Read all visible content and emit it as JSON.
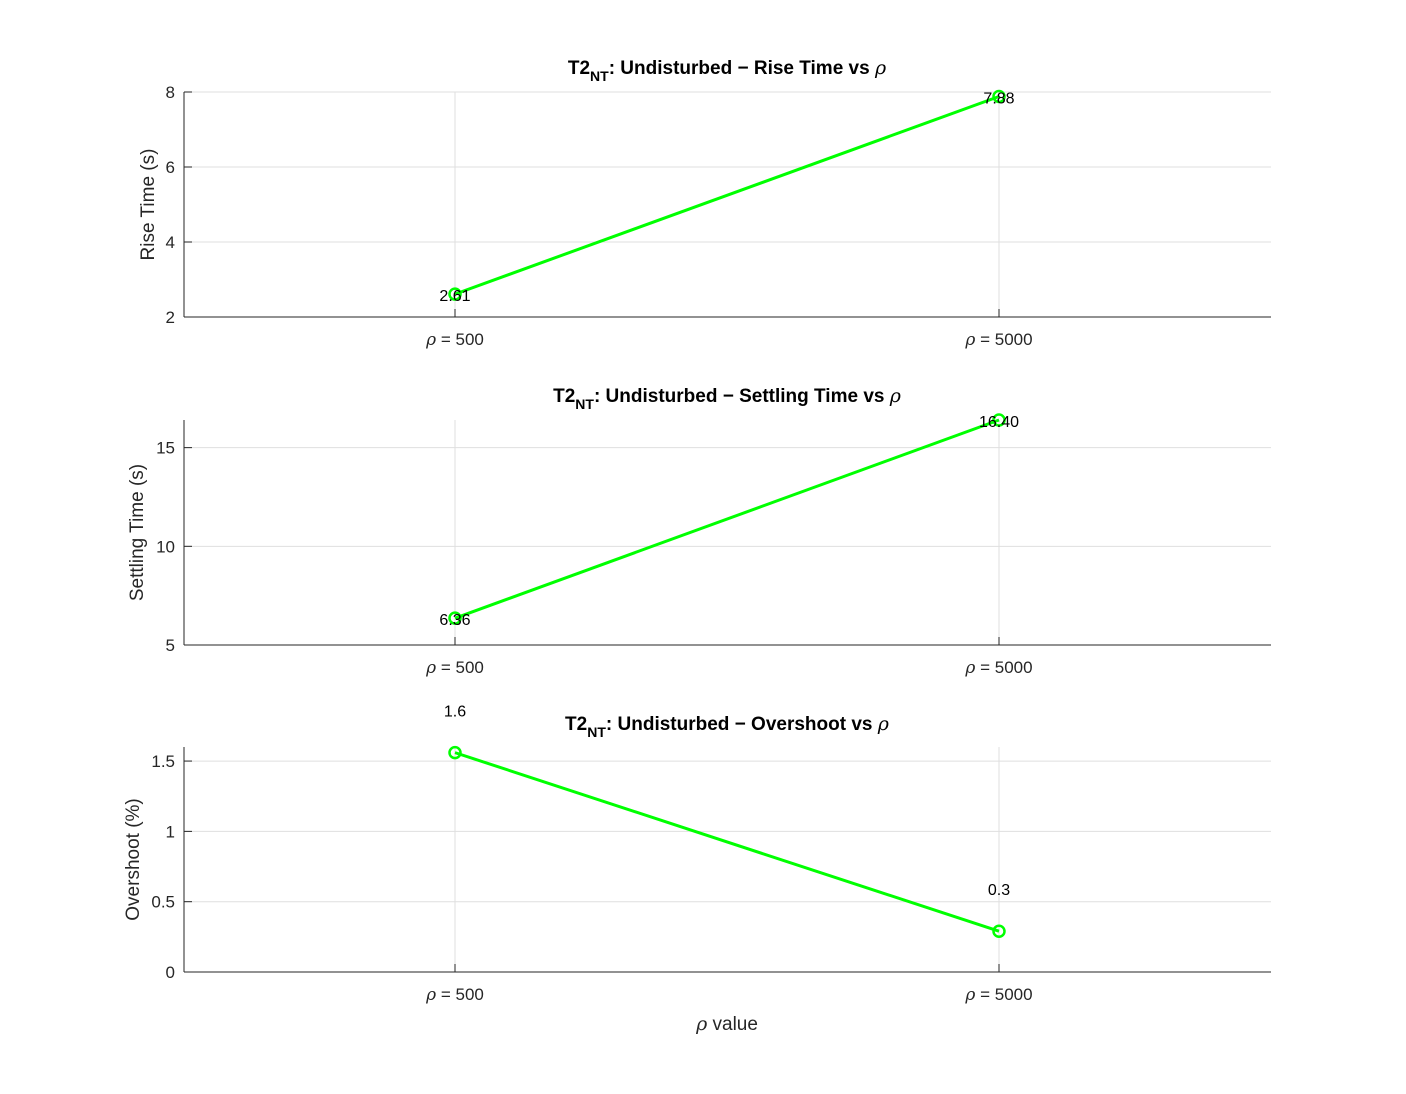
{
  "figure": {
    "xlabel": "ρ value",
    "colors": {
      "line": "#00ff00",
      "axis": "#262626",
      "grid": "#dfdfdf"
    }
  },
  "chart_data": [
    {
      "type": "line",
      "title": {
        "prefix": "T2",
        "subscript": "NT",
        "text": ": Undisturbed − Rise Time vs ",
        "symbol": "ρ"
      },
      "categories": [
        "ρ = 500",
        "ρ = 5000"
      ],
      "series": [
        {
          "values": [
            2.61,
            7.88
          ],
          "color": "#00ff00",
          "marker": "circle"
        }
      ],
      "data_labels": [
        "2.61",
        "7.88"
      ],
      "ylabel": "Rise Time (s)",
      "ylim": [
        2,
        8
      ],
      "yticks": [
        2,
        4,
        6,
        8
      ],
      "grid": true
    },
    {
      "type": "line",
      "title": {
        "prefix": "T2",
        "subscript": "NT",
        "text": ": Undisturbed − Settling Time vs ",
        "symbol": "ρ"
      },
      "categories": [
        "ρ = 500",
        "ρ = 5000"
      ],
      "series": [
        {
          "values": [
            6.36,
            16.4
          ],
          "color": "#00ff00",
          "marker": "circle"
        }
      ],
      "data_labels": [
        "6.36",
        "16.40"
      ],
      "ylabel": "Settling Time (s)",
      "ylim": [
        5,
        16.4
      ],
      "yticks": [
        5,
        10,
        15
      ],
      "grid": true
    },
    {
      "type": "line",
      "title": {
        "prefix": "T2",
        "subscript": "NT",
        "text": ": Undisturbed − Overshoot vs ",
        "symbol": "ρ"
      },
      "categories": [
        "ρ = 500",
        "ρ = 5000"
      ],
      "series": [
        {
          "values": [
            1.56,
            0.29
          ],
          "color": "#00ff00",
          "marker": "circle"
        }
      ],
      "data_labels": [
        "1.6",
        "0.3"
      ],
      "ylabel": "Overshoot (%)",
      "ylim": [
        0,
        1.6
      ],
      "yticks": [
        0,
        0.5,
        1,
        1.5
      ],
      "grid": true
    }
  ]
}
